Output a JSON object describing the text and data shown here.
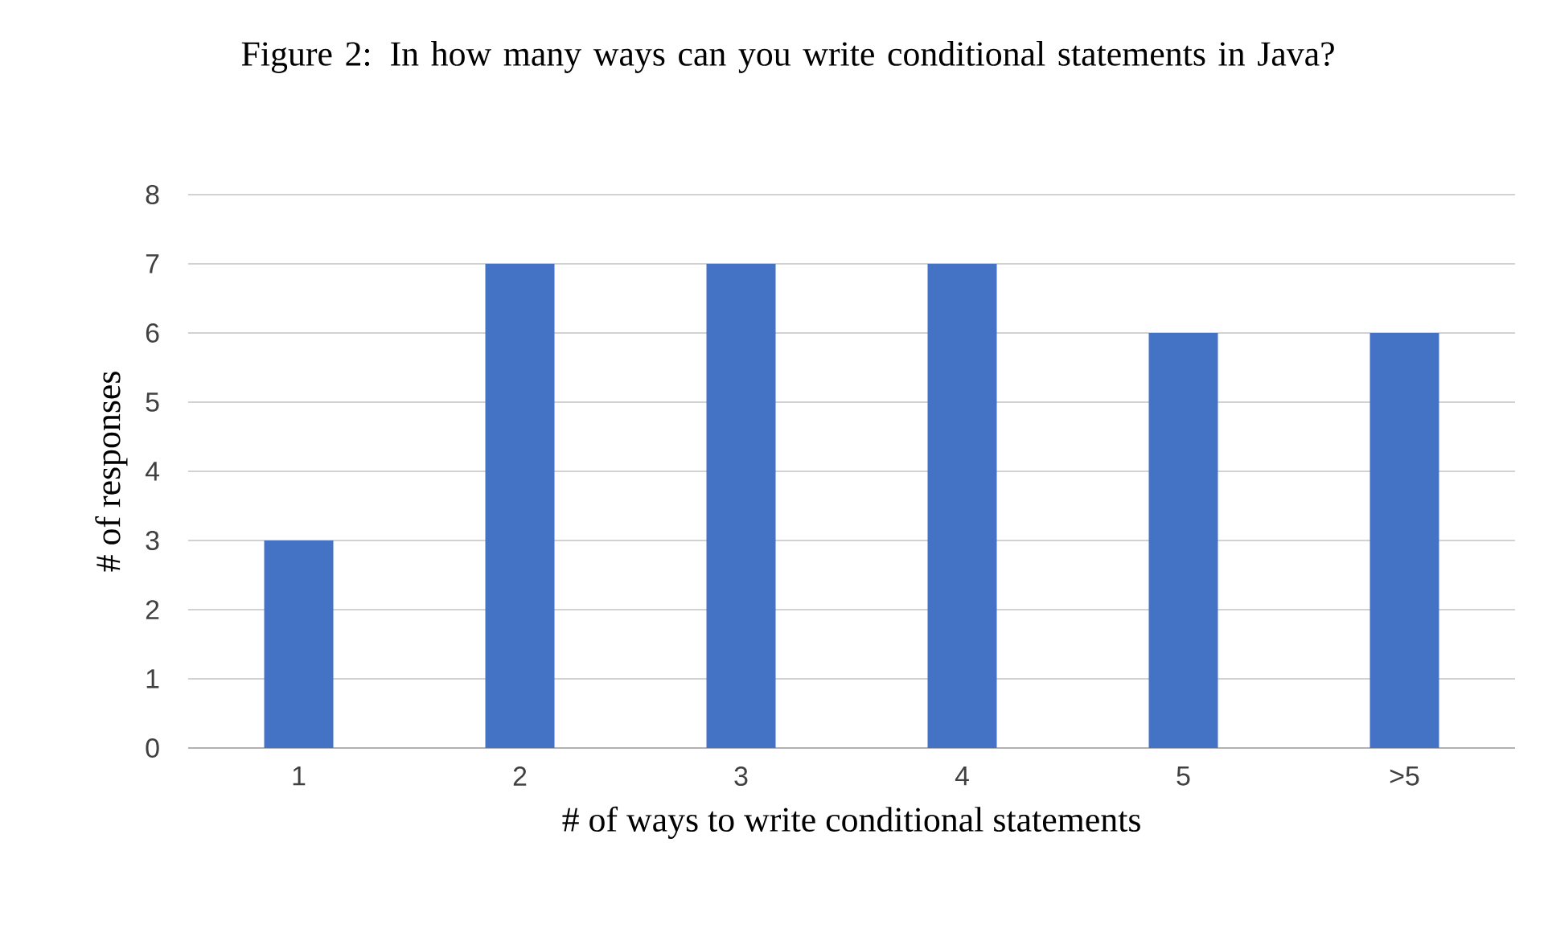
{
  "chart_data": {
    "type": "bar",
    "title": "Figure 2: In how many ways can you write conditional statements in Java?",
    "xlabel": "# of ways to write conditional statements",
    "ylabel": "# of responses",
    "categories": [
      "1",
      "2",
      "3",
      "4",
      "5",
      ">5"
    ],
    "values": [
      3,
      7,
      7,
      7,
      6,
      6
    ],
    "color": "#4472c4",
    "ylim": [
      0,
      8
    ],
    "yticks": [
      0,
      1,
      2,
      3,
      4,
      5,
      6,
      7,
      8
    ],
    "grid": "y"
  }
}
